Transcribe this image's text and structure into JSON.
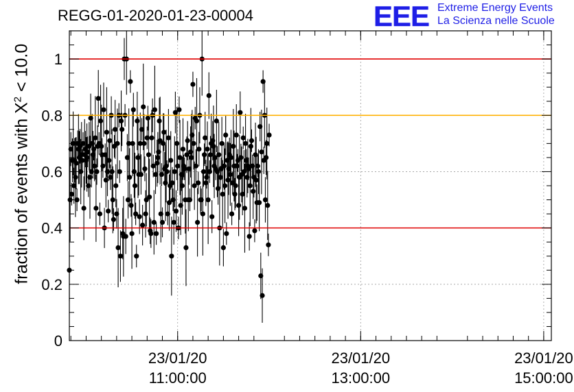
{
  "header": {
    "run_id": "REGG-01-2020-01-23-00004",
    "logo_text": "EEE",
    "logo_line1": "Extreme Energy Events",
    "logo_line2": "La Scienza nelle Scuole"
  },
  "colors": {
    "threshold_low": "#e00000",
    "threshold_high": "#e00000",
    "warning_line": "#ffb000",
    "points": "#000000",
    "grid": "#9a9a9a",
    "logo": "#1e1ee6"
  },
  "chart_data": {
    "type": "scatter",
    "ylabel_prefix": "fraction of events with X",
    "ylabel_sup": "2",
    "ylabel_suffix": " < 10.0",
    "ylim": [
      0,
      1.1
    ],
    "xlim": [
      "2020-01-23 09:49",
      "2020-01-23 15:05"
    ],
    "yticks": [
      0,
      0.2,
      0.4,
      0.6,
      0.8,
      1
    ],
    "ytick_labels": [
      "0",
      "0.2",
      "0.4",
      "0.6",
      "0.8",
      "1"
    ],
    "xticks": [
      {
        "t": "2020-01-23 11:00",
        "date": "23/01/20",
        "time": "11:00:00"
      },
      {
        "t": "2020-01-23 13:00",
        "date": "23/01/20",
        "time": "13:00:00"
      },
      {
        "t": "2020-01-23 15:00",
        "date": "23/01/20",
        "time": "15:00:00"
      }
    ],
    "grid": "dotted at major ticks",
    "reference_lines": [
      {
        "y": 1.0,
        "color": "#e00000"
      },
      {
        "y": 0.8,
        "color": "#ffb000"
      },
      {
        "y": 0.4,
        "color": "#e00000"
      }
    ],
    "point_interval_minutes": 0.5,
    "series": [
      {
        "start": "2020-01-23 09:49",
        "values": [
          0.25,
          0.5,
          0.68,
          0.52,
          0.64,
          0.7,
          0.55,
          0.64,
          0.58,
          0.63,
          0.5,
          0.7,
          0.68,
          0.65,
          0.69,
          0.6,
          0.66,
          0.64,
          0.7,
          0.47,
          0.66,
          0.68,
          0.64,
          0.65,
          0.67,
          0.55,
          0.69,
          0.58,
          0.79,
          0.6,
          0.7,
          0.66,
          0.68,
          0.62,
          0.72,
          0.47,
          0.6,
          0.69,
          0.86,
          0.7,
          0.45,
          0.78,
          0.69,
          0.66,
          0.62,
          0.82,
          0.4,
          0.66,
          0.57,
          0.74,
          0.6,
          0.46,
          0.64,
          0.71,
          0.58,
          0.8,
          0.6,
          0.5,
          0.43,
          0.69,
          0.75,
          0.55,
          0.45,
          0.7,
          0.33,
          0.8,
          0.6,
          0.3,
          0.78,
          0.75,
          0.38,
          0.37,
          1.0,
          0.8,
          0.37,
          1.0,
          0.65,
          0.5,
          0.7,
          0.58,
          0.92,
          0.48,
          0.38,
          0.7,
          0.82,
          0.6,
          0.55,
          0.45,
          0.3,
          0.78,
          0.65,
          0.59,
          0.44,
          0.7,
          0.59,
          0.75,
          0.41,
          0.83,
          0.7,
          0.61,
          0.45,
          0.5,
          0.72,
          0.79,
          0.66,
          0.51,
          0.39,
          0.38,
          0.72,
          0.8,
          0.62,
          0.42,
          0.82,
          0.59,
          0.38,
          0.63,
          0.65,
          0.67,
          0.78,
          0.71,
          0.45,
          0.59,
          0.42,
          0.7,
          0.74,
          0.61,
          0.56,
          0.62,
          0.6,
          0.45,
          0.72,
          0.49,
          0.55,
          0.64,
          0.3,
          0.56,
          0.5,
          0.42,
          0.6,
          0.81,
          0.46,
          0.7,
          0.62,
          0.4,
          0.82,
          0.65,
          0.48,
          0.59,
          0.55,
          0.68,
          0.62,
          0.61,
          0.5,
          0.33,
          0.66,
          0.71,
          0.5,
          0.61,
          0.5,
          0.67,
          0.65,
          0.73,
          0.91,
          0.7,
          0.55,
          0.79,
          0.62,
          0.78,
          0.42,
          0.56,
          0.68,
          0.8,
          0.5,
          0.5,
          1.0,
          0.45,
          0.6,
          0.66,
          0.72,
          0.56,
          0.58,
          0.68,
          0.5,
          0.87,
          0.6,
          0.66,
          0.7,
          0.44,
          0.71,
          0.69,
          0.62,
          0.65,
          0.61,
          0.78,
          0.6,
          0.54,
          0.66,
          0.4,
          0.58,
          0.61,
          0.7,
          0.52,
          0.33,
          0.62,
          0.55,
          0.73,
          0.38,
          0.64,
          0.57,
          0.61,
          0.66,
          0.59,
          0.65,
          0.45,
          0.56,
          0.69,
          0.62,
          0.52,
          0.55,
          0.73,
          0.62,
          0.64,
          0.48,
          0.58,
          0.81,
          0.65,
          0.59,
          0.52,
          0.72,
          0.6,
          0.47,
          0.7,
          0.64,
          0.58,
          0.62,
          0.61,
          0.37,
          0.55,
          0.69,
          0.71,
          0.62,
          0.53,
          0.58,
          0.39,
          0.66,
          0.57,
          0.49,
          0.62,
          0.6,
          0.49,
          0.76,
          0.23,
          0.67,
          0.16,
          0.92,
          0.64,
          0.8,
          0.5,
          0.65,
          0.7,
          0.48,
          0.34,
          0.73
        ]
      }
    ]
  }
}
